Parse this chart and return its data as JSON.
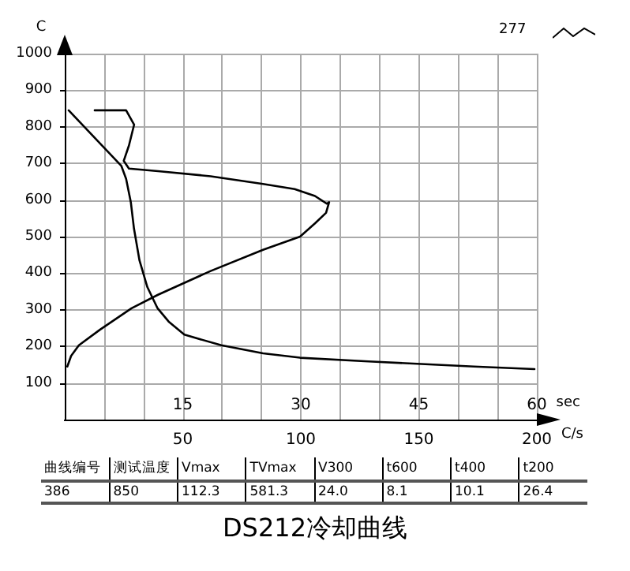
{
  "chart_data": {
    "type": "line",
    "title": "DS212冷却曲线",
    "ylabel": "C",
    "xlabel": "sec",
    "x2label": "C/s",
    "annotations": [
      "277",
      "曲线编号",
      "测试温度",
      "Vmax",
      "TVmax",
      "V300",
      "t600",
      "t400",
      "t200",
      "386",
      "850",
      "112.3",
      "581.3",
      "24.0",
      "8.1",
      "10.1",
      "26.4"
    ],
    "xlim": [
      0,
      60
    ],
    "xticks": [
      {
        "value": 5,
        "label": null
      },
      {
        "value": 10,
        "label": null
      },
      15,
      {
        "value": 20,
        "label": null
      },
      {
        "value": 25,
        "label": null
      },
      30,
      {
        "value": 35,
        "label": null
      },
      {
        "value": 40,
        "label": null
      },
      45,
      {
        "value": 50,
        "label": null
      },
      {
        "value": 55,
        "label": null
      },
      60
    ],
    "x2lim": [
      0,
      200
    ],
    "x2ticks": [
      50,
      100,
      150,
      200
    ],
    "ylim": [
      0,
      1000
    ],
    "yticks": [
      100,
      200,
      300,
      400,
      500,
      600,
      700,
      800,
      900,
      1000
    ],
    "grid": true,
    "marker": "none",
    "line_style": "solid",
    "series": [
      {
        "color": "#000000",
        "x": [
          0.5,
          3.8,
          7.2,
          7.8,
          8.4,
          8.8,
          9.5,
          10.5,
          11.8,
          13.2,
          15.2,
          19.9,
          25.2,
          29.9,
          38.6,
          45.3,
          52,
          59.7
        ],
        "values": [
          845,
          770,
          693,
          658,
          594,
          522,
          435,
          362,
          304,
          268,
          232,
          203,
          181,
          169,
          159,
          152,
          145,
          138
        ]
      },
      {
        "color": "#000000",
        "axis": "x2",
        "x": [
          12.7,
          26,
          29.4,
          27.2,
          25,
          27.2,
          39.5,
          61.8,
          84,
          97.4,
          106,
          111,
          112,
          110.7,
          106,
          99.7,
          84,
          61.8,
          39.5,
          28.3,
          15,
          6,
          2.7,
          1.1
        ],
        "values": [
          845,
          845,
          806,
          749,
          707,
          686,
          679,
          665,
          644,
          630,
          611,
          590,
          594,
          565,
          536,
          500,
          464,
          406,
          341,
          304,
          246,
          203,
          174,
          145
        ]
      }
    ]
  }
}
